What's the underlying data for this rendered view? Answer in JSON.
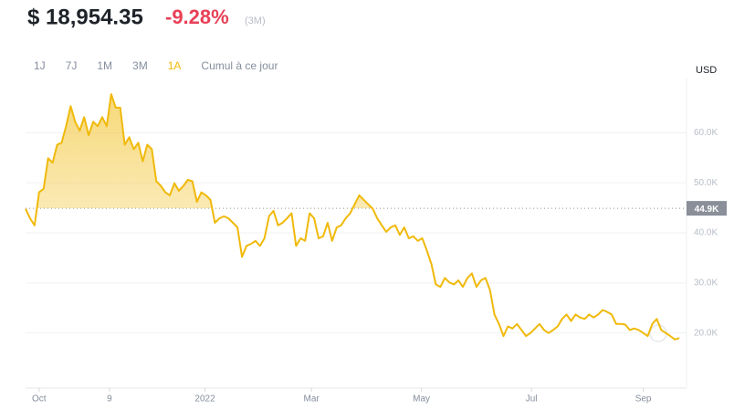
{
  "header": {
    "price": "$ 18,954.35",
    "change": "-9.28%",
    "change_period": "(3M)"
  },
  "range_buttons": {
    "labels": [
      "1J",
      "7J",
      "1M",
      "3M",
      "1A",
      "Cumul à ce jour"
    ],
    "selected": 4
  },
  "chart_data": {
    "type": "line",
    "y_axis_label": "USD",
    "x": [
      -7.5,
      -5,
      -2.5,
      0,
      2.5,
      5,
      7.5,
      10,
      12.5,
      15,
      17.5,
      20,
      22.5,
      25,
      27.5,
      30,
      32.5,
      35,
      37.5,
      40,
      42.5,
      45,
      47.5,
      50,
      52.5,
      55,
      57.5,
      60,
      62.5,
      65,
      67.5,
      70,
      72.5,
      75,
      77.5,
      80,
      82.5,
      85,
      87.5,
      90,
      92.5,
      95,
      97.5,
      100,
      102.5,
      105,
      107.5,
      110,
      112.5,
      115,
      117.5,
      120,
      122.5,
      125,
      127.5,
      130,
      132.5,
      135,
      137.5,
      140,
      142.5,
      145,
      147.5,
      150,
      152.5,
      155,
      157.5,
      160,
      162.5,
      165,
      167.5,
      170,
      172.5,
      175,
      177.5,
      180,
      182.5,
      185,
      187.5,
      190,
      192.5,
      195,
      197.5,
      200,
      202.5,
      205,
      207.5,
      210,
      212.5,
      215,
      217.5,
      220,
      222.5,
      225,
      227.5,
      230,
      232.5,
      235,
      237.5,
      240,
      242.5,
      245,
      247.5,
      250,
      252.5,
      255,
      257.5,
      260,
      262.5,
      265,
      267.5,
      270,
      272.5,
      275,
      277.5,
      280,
      282.5,
      285,
      287.5,
      290,
      292.5,
      295,
      297.5,
      300,
      302.5,
      305,
      307.5,
      310,
      312.5,
      315,
      317.5,
      320,
      322.5,
      325,
      327.5,
      330,
      332.5,
      335,
      337.5,
      340,
      342.5,
      345,
      347.5,
      350,
      352.5,
      355
    ],
    "xlim": [
      -7.5,
      359
    ],
    "xticks": [
      {
        "value": 0,
        "label": "Oct"
      },
      {
        "value": 39,
        "label": "9"
      },
      {
        "value": 92,
        "label": "2022"
      },
      {
        "value": 151,
        "label": "Mar"
      },
      {
        "value": 212,
        "label": "May"
      },
      {
        "value": 273,
        "label": "Jul"
      },
      {
        "value": 335,
        "label": "Sep"
      }
    ],
    "ylim": [
      9000,
      71000
    ],
    "yticks": [
      {
        "value": 20000,
        "label": "20.0K"
      },
      {
        "value": 30000,
        "label": "30.0K"
      },
      {
        "value": 40000,
        "label": "40.0K"
      },
      {
        "value": 50000,
        "label": "50.0K"
      },
      {
        "value": 60000,
        "label": "60.0K"
      }
    ],
    "grid": true,
    "reference_line": {
      "value": 44900,
      "label": "44.9K"
    },
    "series": [
      {
        "color": "#f0b90b",
        "values": [
          44800,
          42900,
          41500,
          48100,
          48800,
          54900,
          54000,
          57600,
          58000,
          61300,
          65300,
          62200,
          60400,
          63100,
          59500,
          62200,
          61300,
          63100,
          61300,
          67700,
          65000,
          65000,
          57600,
          59100,
          56700,
          58000,
          54300,
          57600,
          56700,
          50300,
          49400,
          48100,
          47500,
          49900,
          48400,
          49400,
          50600,
          50300,
          46200,
          48100,
          47500,
          46600,
          42000,
          42900,
          43300,
          42900,
          42000,
          41100,
          35200,
          37400,
          37800,
          38400,
          37400,
          38900,
          43300,
          44400,
          41500,
          42000,
          42900,
          43900,
          37400,
          38900,
          38400,
          43900,
          42900,
          38900,
          39300,
          42000,
          38400,
          41100,
          41500,
          42900,
          43900,
          45700,
          47500,
          46600,
          45700,
          44800,
          42900,
          41500,
          40200,
          41100,
          41500,
          39600,
          41100,
          38900,
          39300,
          38400,
          38900,
          36500,
          33800,
          29700,
          29200,
          31000,
          30100,
          29700,
          30500,
          29200,
          31000,
          31900,
          29200,
          30500,
          31000,
          28600,
          23700,
          21800,
          19400,
          21300,
          20900,
          21800,
          20600,
          19400,
          20000,
          20900,
          21800,
          20600,
          20000,
          20600,
          21300,
          22800,
          23700,
          22400,
          23700,
          23100,
          22800,
          23700,
          23100,
          23700,
          24600,
          24200,
          23700,
          21800,
          21800,
          21700,
          20600,
          20900,
          20600,
          20000,
          19400,
          21800,
          22800,
          20600,
          20000,
          19400,
          18700,
          19000
        ]
      }
    ]
  }
}
